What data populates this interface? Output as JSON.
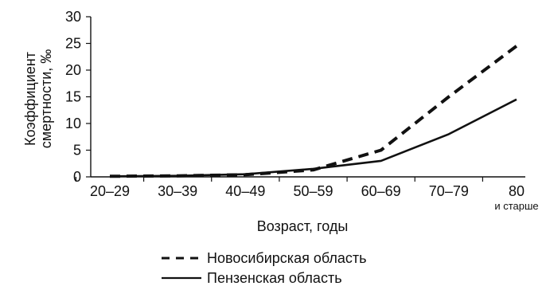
{
  "chart_data": {
    "type": "line",
    "categories": [
      "20–29",
      "30–39",
      "40–49",
      "50–59",
      "60–69",
      "70–79",
      "80"
    ],
    "category_sublabels": [
      "",
      "",
      "",
      "",
      "",
      "",
      "и старше"
    ],
    "series": [
      {
        "name": "Новосибирская область",
        "values": [
          0.1,
          0.2,
          0.4,
          1.3,
          5.0,
          15.0,
          24.5
        ],
        "style": "dashed",
        "color": "#111111"
      },
      {
        "name": "Пензенская область",
        "values": [
          0.1,
          0.2,
          0.5,
          1.5,
          3.0,
          8.0,
          14.5
        ],
        "style": "solid",
        "color": "#111111"
      }
    ],
    "xlabel": "Возраст, годы",
    "ylabel": [
      "Коэффициент",
      "смертности, ‰"
    ],
    "ylim": [
      0,
      30
    ],
    "yticks": [
      0,
      5,
      10,
      15,
      20,
      25,
      30
    ],
    "grid": false,
    "legend_position": "bottom"
  }
}
